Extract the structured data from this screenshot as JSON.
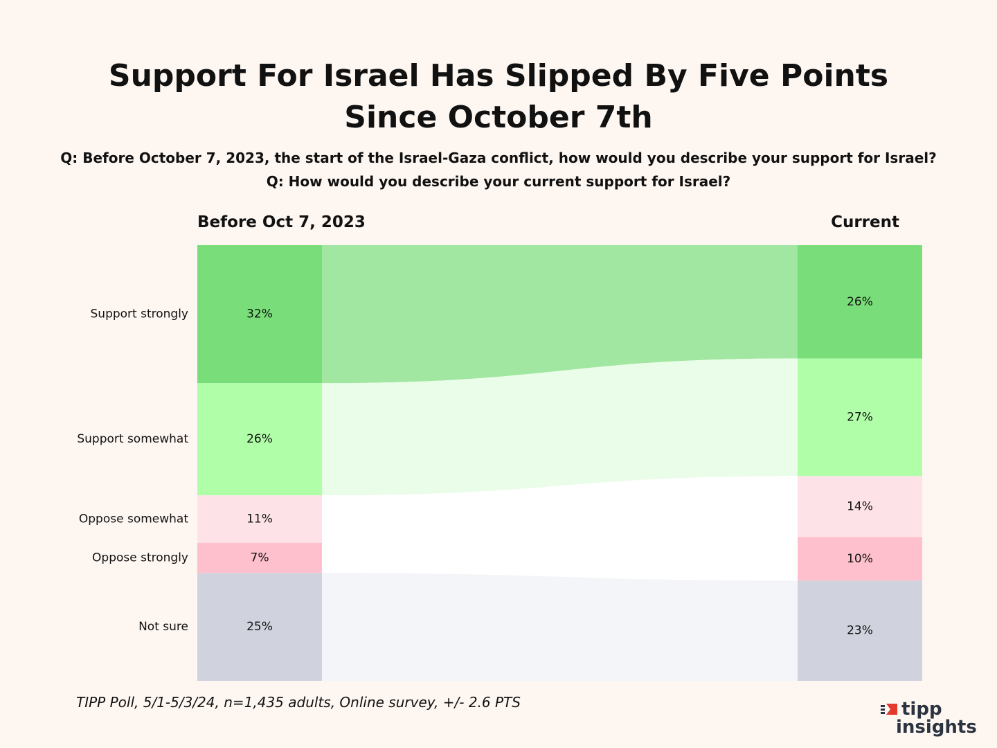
{
  "title": "Support For Israel Has Slipped By Five Points Since October 7th",
  "questions": [
    "Q: Before October 7, 2023, the start of the Israel-Gaza conflict, how would you describe your support for Israel?",
    "Q: How would you describe your current support for Israel?"
  ],
  "footnote": "TIPP Poll, 5/1-5/3/24, n=1,435 adults, Online survey, +/- 2.6 PTS",
  "logo": {
    "line1": "tipp",
    "line2": "insights"
  },
  "chart_data": {
    "type": "sankey",
    "title": "Support For Israel Has Slipped By Five Points Since October 7th",
    "columns": [
      "Before Oct 7, 2023",
      "Current"
    ],
    "categories": [
      "Support strongly",
      "Support somewhat",
      "Oppose somewhat",
      "Oppose strongly",
      "Not sure"
    ],
    "series": [
      {
        "name": "Before Oct 7, 2023",
        "values": [
          32,
          26,
          11,
          7,
          25
        ],
        "labels": [
          "32%",
          "26%",
          "11%",
          "7%",
          "25%"
        ]
      },
      {
        "name": "Current",
        "values": [
          26,
          27,
          14,
          10,
          23
        ],
        "labels": [
          "26%",
          "27%",
          "14%",
          "10%",
          "23%"
        ]
      }
    ],
    "colors": {
      "nodes": [
        "#79de79",
        "#b0ffa8",
        "#fde3e8",
        "#fec0cd",
        "#d0d3de"
      ],
      "flows": [
        "#a1e6a1",
        "#e9fde9",
        "#ffffff",
        "#ffffff",
        "#f4f5f8"
      ]
    },
    "unit": "%"
  }
}
